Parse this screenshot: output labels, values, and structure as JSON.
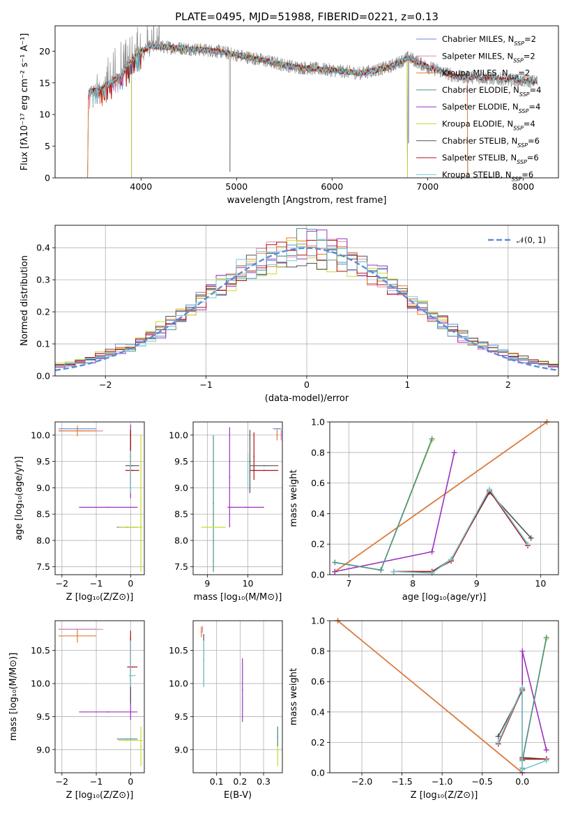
{
  "title": "PLATE=0495, MJD=51988, FIBERID=0221, z=0.13",
  "colors": {
    "Chabrier MILES": "#5b8bd9",
    "Salpeter MILES": "#e089b8",
    "Kroupa MILES": "#e07b2e",
    "Chabrier ELODIE": "#4a8f8f",
    "Salpeter ELODIE": "#9b30c0",
    "Kroupa ELODIE": "#c8d92a",
    "Chabrier STELIB": "#505050",
    "Salpeter STELIB": "#b01010",
    "Kroupa STELIB": "#79c8d0",
    "normal_curve": "#5b8bd9",
    "grid": "#b0b0b0"
  },
  "legend1": [
    {
      "key": "Chabrier MILES",
      "label": "Chabrier MILES, N",
      "sub": "SSP",
      "tail": "=2"
    },
    {
      "key": "Salpeter MILES",
      "label": "Salpeter MILES, N",
      "sub": "SSP",
      "tail": "=2"
    },
    {
      "key": "Kroupa MILES",
      "label": "Kroupa MILES, N",
      "sub": "SSP",
      "tail": "=2"
    },
    {
      "key": "Chabrier ELODIE",
      "label": "Chabrier ELODIE, N",
      "sub": "SSP",
      "tail": "=4"
    },
    {
      "key": "Salpeter ELODIE",
      "label": "Salpeter ELODIE, N",
      "sub": "SSP",
      "tail": "=4"
    },
    {
      "key": "Kroupa ELODIE",
      "label": "Kroupa ELODIE, N",
      "sub": "SSP",
      "tail": "=4"
    },
    {
      "key": "Chabrier STELIB",
      "label": "Chabrier STELIB, N",
      "sub": "SSP",
      "tail": "=6"
    },
    {
      "key": "Salpeter STELIB",
      "label": "Salpeter STELIB, N",
      "sub": "SSP",
      "tail": "=6"
    },
    {
      "key": "Kroupa STELIB",
      "label": "Kroupa STELIB, N",
      "sub": "SSP",
      "tail": "=6"
    }
  ],
  "legend2": {
    "label": "𝒩(0, 1)"
  },
  "chart_data": [
    {
      "type": "line",
      "panel": "spectrum",
      "xlabel": "wavelength [Angstrom, rest frame]",
      "ylabel": "Flux [fλ10⁻¹⁷ erg cm⁻² s⁻¹ A⁻¹]",
      "xlim": [
        3100,
        8370
      ],
      "ylim": [
        0,
        24
      ],
      "xticks": [
        4000,
        5000,
        6000,
        7000,
        8000
      ],
      "yticks": [
        0,
        5,
        10,
        15,
        20
      ],
      "grid": false,
      "legend": "upper right",
      "continuum": [
        [
          3450,
          13.5
        ],
        [
          3600,
          14.2
        ],
        [
          3800,
          16.2
        ],
        [
          3950,
          19.5
        ],
        [
          4100,
          20.8
        ],
        [
          4400,
          20.5
        ],
        [
          4800,
          20.0
        ],
        [
          5200,
          18.8
        ],
        [
          5600,
          17.5
        ],
        [
          6000,
          17.0
        ],
        [
          6300,
          16.5
        ],
        [
          6600,
          17.5
        ],
        [
          6800,
          19.0
        ],
        [
          7000,
          17.5
        ],
        [
          7300,
          16.0
        ],
        [
          7600,
          15.8
        ],
        [
          8000,
          15.3
        ],
        [
          8150,
          15.2
        ]
      ],
      "series": [
        {
          "name": "Chabrier MILES",
          "x_range": [
            3450,
            7420
          ]
        },
        {
          "name": "Salpeter MILES",
          "x_range": [
            3450,
            7420
          ]
        },
        {
          "name": "Kroupa MILES",
          "x_range": [
            3450,
            7420
          ]
        },
        {
          "name": "Chabrier ELODIE",
          "x_range": [
            3900,
            6790
          ]
        },
        {
          "name": "Salpeter ELODIE",
          "x_range": [
            3900,
            6790
          ]
        },
        {
          "name": "Kroupa ELODIE",
          "x_range": [
            3900,
            6790
          ]
        },
        {
          "name": "Chabrier STELIB",
          "x_range": [
            3450,
            8150
          ]
        },
        {
          "name": "Salpeter STELIB",
          "x_range": [
            3450,
            8150
          ]
        },
        {
          "name": "Kroupa STELIB",
          "x_range": [
            3450,
            8150
          ]
        }
      ]
    },
    {
      "type": "line",
      "panel": "residuals",
      "xlabel": "(data-model)/error",
      "ylabel": "Normed distribution",
      "xlim": [
        -2.5,
        2.5
      ],
      "ylim": [
        0,
        0.47
      ],
      "xticks": [
        -2,
        -1,
        0,
        1,
        2
      ],
      "yticks": [
        0.0,
        0.1,
        0.2,
        0.3,
        0.4
      ],
      "grid": true,
      "legend": "upper right",
      "bin_width": 0.1,
      "series": [
        {
          "name": "N(0,1)",
          "kind": "gaussian",
          "mu": 0,
          "sigma": 1
        },
        {
          "name": "Chabrier MILES",
          "kind": "histogram"
        },
        {
          "name": "Salpeter MILES",
          "kind": "histogram"
        },
        {
          "name": "Kroupa MILES",
          "kind": "histogram"
        },
        {
          "name": "Chabrier ELODIE",
          "kind": "histogram"
        },
        {
          "name": "Salpeter ELODIE",
          "kind": "histogram"
        },
        {
          "name": "Kroupa ELODIE",
          "kind": "histogram"
        },
        {
          "name": "Chabrier STELIB",
          "kind": "histogram"
        },
        {
          "name": "Salpeter STELIB",
          "kind": "histogram"
        },
        {
          "name": "Kroupa STELIB",
          "kind": "histogram"
        }
      ]
    },
    {
      "type": "scatter",
      "panel": "Z-age",
      "xlabel": "Z [log₁₀(Z/Z⊙)]",
      "ylabel": "age  [log₁₀(age/yr)]",
      "xlim": [
        -2.2,
        0.4
      ],
      "ylim": [
        7.35,
        10.25
      ],
      "xticks": [
        -2,
        -1,
        0
      ],
      "yticks": [
        7.5,
        8.0,
        8.5,
        9.0,
        9.5,
        10.0
      ],
      "grid": true,
      "points": [
        {
          "series": "Chabrier MILES",
          "x": -1.55,
          "xerr": 0.55,
          "y": 10.12,
          "yerr": 0.0
        },
        {
          "series": "Salpeter MILES",
          "x": -1.45,
          "xerr": 0.65,
          "y": 10.08,
          "yerr": 0.0
        },
        {
          "series": "Kroupa MILES",
          "x": -1.55,
          "xerr": 0.55,
          "y": 10.08,
          "yerr": 0.1
        },
        {
          "series": "Salpeter ELODIE",
          "x": -0.65,
          "xerr": 0.85,
          "y": 8.63,
          "yerr": 0.0
        },
        {
          "series": "Salpeter ELODIE",
          "x": 0.0,
          "xerr": 0.0,
          "y": 9.5,
          "yerr": 0.7
        },
        {
          "series": "Chabrier ELODIE",
          "x": -0.1,
          "xerr": 0.3,
          "y": 8.25,
          "yerr": 0.0
        },
        {
          "series": "Kroupa ELODIE",
          "x": 0.0,
          "xerr": 0.35,
          "y": 8.25,
          "yerr": 0.0
        },
        {
          "series": "Kroupa ELODIE",
          "x": 0.3,
          "xerr": 0.0,
          "y": 8.7,
          "yerr": 1.3
        },
        {
          "series": "Chabrier STELIB",
          "x": 0.05,
          "xerr": 0.2,
          "y": 9.42,
          "yerr": 0.0
        },
        {
          "series": "Chabrier STELIB",
          "x": 0.0,
          "xerr": 0.0,
          "y": 9.5,
          "yerr": 0.6
        },
        {
          "series": "Salpeter STELIB",
          "x": 0.05,
          "xerr": 0.2,
          "y": 9.33,
          "yerr": 0.0
        },
        {
          "series": "Salpeter STELIB",
          "x": 0.0,
          "xerr": 0.0,
          "y": 9.6,
          "yerr": 0.5
        },
        {
          "series": "Kroupa STELIB",
          "x": 0.0,
          "xerr": 0.0,
          "y": 9.3,
          "yerr": 0.4
        }
      ]
    },
    {
      "type": "scatter",
      "panel": "mass-age",
      "xlabel": "mass [log₁₀(M/M⊙)]",
      "ylabel": "",
      "xlim": [
        8.65,
        10.85
      ],
      "ylim": [
        7.35,
        10.25
      ],
      "xticks": [
        9,
        10
      ],
      "yticks": [
        7.5,
        8.0,
        8.5,
        9.0,
        9.5,
        10.0
      ],
      "grid": true,
      "points": [
        {
          "series": "Chabrier MILES",
          "x": 10.72,
          "xerr": 0.1,
          "y": 10.12,
          "yerr": 0.0
        },
        {
          "series": "Salpeter MILES",
          "x": 10.82,
          "xerr": 0.0,
          "y": 10.0,
          "yerr": 0.1
        },
        {
          "series": "Kroupa MILES",
          "x": 10.72,
          "xerr": 0.0,
          "y": 10.0,
          "yerr": 0.1
        },
        {
          "series": "Chabrier ELODIE",
          "x": 9.15,
          "xerr": 0.0,
          "y": 8.7,
          "yerr": 1.3
        },
        {
          "series": "Kroupa ELODIE",
          "x": 9.15,
          "xerr": 0.3,
          "y": 8.25,
          "yerr": 0.0
        },
        {
          "series": "Salpeter ELODIE",
          "x": 9.55,
          "xerr": 0.0,
          "y": 9.2,
          "yerr": 0.95
        },
        {
          "series": "Salpeter ELODIE",
          "x": 9.95,
          "xerr": 0.45,
          "y": 8.63,
          "yerr": 0.0
        },
        {
          "series": "Chabrier STELIB",
          "x": 10.4,
          "xerr": 0.35,
          "y": 9.42,
          "yerr": 0.0
        },
        {
          "series": "Chabrier STELIB",
          "x": 10.05,
          "xerr": 0.0,
          "y": 9.5,
          "yerr": 0.6
        },
        {
          "series": "Salpeter STELIB",
          "x": 10.4,
          "xerr": 0.35,
          "y": 9.33,
          "yerr": 0.0
        },
        {
          "series": "Salpeter STELIB",
          "x": 10.15,
          "xerr": 0.0,
          "y": 9.6,
          "yerr": 0.45
        },
        {
          "series": "Kroupa STELIB",
          "x": 10.0,
          "xerr": 0.0,
          "y": 9.3,
          "yerr": 0.35
        }
      ]
    },
    {
      "type": "line",
      "panel": "age-weight",
      "xlabel": "age  [log₁₀(age/yr)]",
      "ylabel": "mass weight",
      "xlim": [
        6.7,
        10.28
      ],
      "ylim": [
        0,
        1.0
      ],
      "xticks": [
        7,
        8,
        9,
        10
      ],
      "yticks": [
        0.0,
        0.2,
        0.4,
        0.6,
        0.8,
        1.0
      ],
      "grid": true,
      "series": [
        {
          "name": "Chabrier MILES",
          "x": [
            6.78,
            10.1
          ],
          "y": [
            0.02,
            1.0
          ]
        },
        {
          "name": "Salpeter MILES",
          "x": [
            6.78,
            10.1
          ],
          "y": [
            0.02,
            1.0
          ]
        },
        {
          "name": "Kroupa MILES",
          "x": [
            6.78,
            10.1
          ],
          "y": [
            0.02,
            1.0
          ]
        },
        {
          "name": "Salpeter ELODIE",
          "x": [
            6.78,
            8.3,
            8.65
          ],
          "y": [
            0.02,
            0.15,
            0.8
          ]
        },
        {
          "name": "Kroupa ELODIE",
          "x": [
            6.78,
            7.5,
            8.3
          ],
          "y": [
            0.08,
            0.03,
            0.88
          ]
        },
        {
          "name": "Chabrier ELODIE",
          "x": [
            6.78,
            7.5,
            8.3
          ],
          "y": [
            0.08,
            0.03,
            0.89
          ]
        },
        {
          "name": "Chabrier STELIB",
          "x": [
            7.7,
            8.3,
            8.6,
            9.2,
            9.85
          ],
          "y": [
            0.02,
            0.02,
            0.1,
            0.54,
            0.24
          ]
        },
        {
          "name": "Salpeter STELIB",
          "x": [
            7.7,
            8.3,
            8.6,
            9.2,
            9.8
          ],
          "y": [
            0.02,
            0.02,
            0.09,
            0.55,
            0.19
          ]
        },
        {
          "name": "Kroupa STELIB",
          "x": [
            7.7,
            8.3,
            8.6,
            9.2,
            9.8
          ],
          "y": [
            0.02,
            0.01,
            0.1,
            0.56,
            0.2
          ]
        }
      ]
    },
    {
      "type": "scatter",
      "panel": "Z-mass",
      "xlabel": "Z [log₁₀(Z/Z⊙)]",
      "ylabel": "mass [log₁₀(M/M⊙)]",
      "xlim": [
        -2.2,
        0.4
      ],
      "ylim": [
        8.65,
        10.95
      ],
      "xticks": [
        -2,
        -1,
        0
      ],
      "yticks": [
        9.0,
        9.5,
        10.0,
        10.5
      ],
      "grid": true,
      "points": [
        {
          "series": "Chabrier MILES",
          "x": -1.55,
          "xerr": 0.55,
          "y": 10.82,
          "yerr": 0.0
        },
        {
          "series": "Salpeter MILES",
          "x": -1.45,
          "xerr": 0.65,
          "y": 10.82,
          "yerr": 0.0
        },
        {
          "series": "Kroupa MILES",
          "x": -1.55,
          "xerr": 0.55,
          "y": 10.72,
          "yerr": 0.1
        },
        {
          "series": "Salpeter ELODIE",
          "x": -0.65,
          "xerr": 0.85,
          "y": 9.57,
          "yerr": 0.0
        },
        {
          "series": "Salpeter ELODIE",
          "x": 0.0,
          "xerr": 0.0,
          "y": 10.05,
          "yerr": 0.6
        },
        {
          "series": "Chabrier ELODIE",
          "x": -0.1,
          "xerr": 0.3,
          "y": 9.16,
          "yerr": 0.0
        },
        {
          "series": "Kroupa ELODIE",
          "x": 0.0,
          "xerr": 0.35,
          "y": 9.14,
          "yerr": 0.0
        },
        {
          "series": "Kroupa ELODIE",
          "x": 0.3,
          "xerr": 0.0,
          "y": 9.05,
          "yerr": 0.3
        },
        {
          "series": "Chabrier STELIB",
          "x": 0.0,
          "xerr": 0.0,
          "y": 10.2,
          "yerr": 0.5
        },
        {
          "series": "Salpeter STELIB",
          "x": 0.05,
          "xerr": 0.15,
          "y": 10.25,
          "yerr": 0.0
        },
        {
          "series": "Salpeter STELIB",
          "x": 0.0,
          "xerr": 0.0,
          "y": 10.55,
          "yerr": 0.25
        },
        {
          "series": "Kroupa STELIB",
          "x": 0.05,
          "xerr": 0.1,
          "y": 10.12,
          "yerr": 0.0
        },
        {
          "series": "Kroupa STELIB",
          "x": 0.0,
          "xerr": 0.0,
          "y": 10.3,
          "yerr": 0.35
        }
      ]
    },
    {
      "type": "scatter",
      "panel": "EBV-mass",
      "xlabel": "E(B-V)",
      "ylabel": "",
      "xlim": [
        0.0,
        0.38
      ],
      "ylim": [
        8.65,
        10.95
      ],
      "xticks": [
        0.1,
        0.2,
        0.3
      ],
      "yticks": [
        9.0,
        9.5,
        10.0,
        10.5
      ],
      "grid": true,
      "points": [
        {
          "series": "Kroupa MILES",
          "x": 0.035,
          "xerr": 0.0,
          "y": 10.78,
          "yerr": 0.08
        },
        {
          "series": "Salpeter MILES",
          "x": 0.04,
          "xerr": 0.0,
          "y": 10.82,
          "yerr": 0.05
        },
        {
          "series": "Chabrier STELIB",
          "x": 0.045,
          "xerr": 0.0,
          "y": 10.35,
          "yerr": 0.4
        },
        {
          "series": "Kroupa STELIB",
          "x": 0.045,
          "xerr": 0.0,
          "y": 10.3,
          "yerr": 0.35
        },
        {
          "series": "Salpeter ELODIE",
          "x": 0.21,
          "xerr": 0.0,
          "y": 9.9,
          "yerr": 0.48
        },
        {
          "series": "Kroupa ELODIE",
          "x": 0.36,
          "xerr": 0.0,
          "y": 9.05,
          "yerr": 0.3
        },
        {
          "series": "Chabrier ELODIE",
          "x": 0.36,
          "xerr": 0.0,
          "y": 9.2,
          "yerr": 0.15
        }
      ]
    },
    {
      "type": "line",
      "panel": "Z-weight",
      "xlabel": "Z [log₁₀(Z/Z⊙)]",
      "ylabel": "mass weight",
      "xlim": [
        -2.4,
        0.45
      ],
      "ylim": [
        0,
        1.0
      ],
      "xticks": [
        -2.0,
        -1.5,
        -1.0,
        -0.5,
        0.0
      ],
      "yticks": [
        0.0,
        0.2,
        0.4,
        0.6,
        0.8,
        1.0
      ],
      "grid": true,
      "series": [
        {
          "name": "Chabrier MILES",
          "x": [
            -2.3,
            0.0
          ],
          "y": [
            1.0,
            0.0
          ]
        },
        {
          "name": "Salpeter MILES",
          "x": [
            -2.3,
            0.0
          ],
          "y": [
            1.0,
            0.0
          ]
        },
        {
          "name": "Kroupa MILES",
          "x": [
            -2.3,
            0.0
          ],
          "y": [
            1.0,
            0.0
          ]
        },
        {
          "name": "Salpeter ELODIE",
          "x": [
            0.0,
            0.0,
            0.3
          ],
          "y": [
            0.0,
            0.8,
            0.15
          ]
        },
        {
          "name": "Kroupa ELODIE",
          "x": [
            0.0,
            0.0,
            0.3
          ],
          "y": [
            0.02,
            0.08,
            0.88
          ]
        },
        {
          "name": "Chabrier ELODIE",
          "x": [
            0.0,
            0.0,
            0.3
          ],
          "y": [
            0.03,
            0.08,
            0.89
          ]
        },
        {
          "name": "Chabrier STELIB",
          "x": [
            -0.3,
            0.0,
            0.0,
            0.3
          ],
          "y": [
            0.24,
            0.54,
            0.1,
            0.09
          ]
        },
        {
          "name": "Salpeter STELIB",
          "x": [
            -0.3,
            0.0,
            0.0,
            0.3
          ],
          "y": [
            0.19,
            0.55,
            0.09,
            0.09
          ]
        },
        {
          "name": "Kroupa STELIB",
          "x": [
            -0.3,
            0.0,
            0.0,
            0.3
          ],
          "y": [
            0.2,
            0.56,
            0.02,
            0.08
          ]
        }
      ]
    }
  ]
}
